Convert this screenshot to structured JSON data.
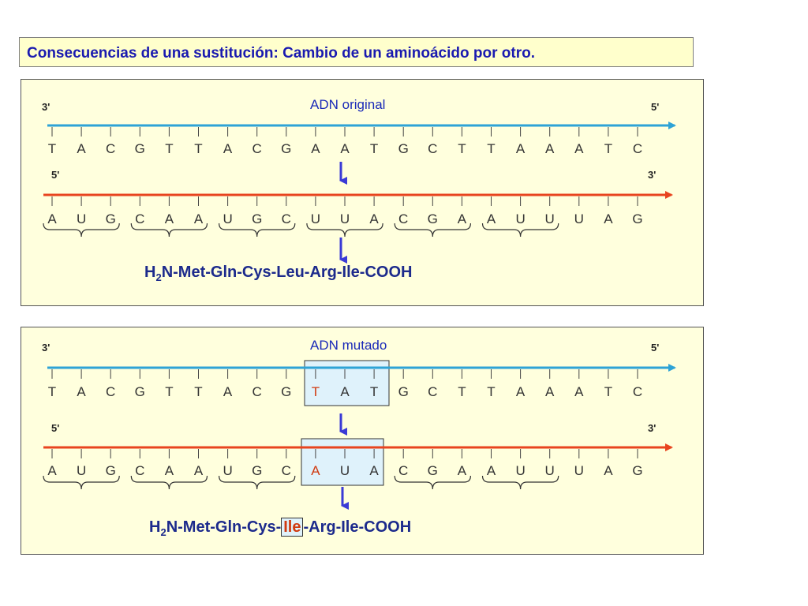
{
  "title": "Consecuencias de una sustitución: Cambio de un aminoácido por otro.",
  "colors": {
    "dna_strand": "#2ea3d6",
    "rna_strand": "#e8441f",
    "arrow": "#3a3ad6",
    "mutation": "#d03a10",
    "highlight_fill": "#dff2fb",
    "panel_bg": "#ffffdd"
  },
  "panels": [
    {
      "id": "original",
      "heading": "ADN original",
      "dna_left_end": "3'",
      "dna_right_end": "5'",
      "rna_left_end": "5'",
      "rna_right_end": "3'",
      "dna_bases": [
        "T",
        "A",
        "C",
        "G",
        "T",
        "T",
        "A",
        "C",
        "G",
        "A",
        "A",
        "T",
        "G",
        "C",
        "T",
        "T",
        "A",
        "A",
        "A",
        "T",
        "C"
      ],
      "rna_bases": [
        "A",
        "U",
        "G",
        "C",
        "A",
        "A",
        "U",
        "G",
        "C",
        "U",
        "U",
        "A",
        "C",
        "G",
        "A",
        "A",
        "U",
        "U",
        "U",
        "A",
        "G"
      ],
      "mutated_dna_index": null,
      "mutated_rna_index": null,
      "protein": {
        "prefix": "H",
        "subscript": "2",
        "before": "N-Met-Gln-Cys-",
        "changed": "Leu",
        "after": "-Arg-Ile-COOH"
      }
    },
    {
      "id": "mutated",
      "heading": "ADN mutado",
      "dna_left_end": "3'",
      "dna_right_end": "5'",
      "rna_left_end": "5'",
      "rna_right_end": "3'",
      "dna_bases": [
        "T",
        "A",
        "C",
        "G",
        "T",
        "T",
        "A",
        "C",
        "G",
        "T",
        "A",
        "T",
        "G",
        "C",
        "T",
        "T",
        "A",
        "A",
        "A",
        "T",
        "C"
      ],
      "rna_bases": [
        "A",
        "U",
        "G",
        "C",
        "A",
        "A",
        "U",
        "G",
        "C",
        "A",
        "U",
        "A",
        "C",
        "G",
        "A",
        "A",
        "U",
        "U",
        "U",
        "A",
        "G"
      ],
      "mutated_dna_index": 9,
      "mutated_rna_index": 9,
      "protein": {
        "prefix": "H",
        "subscript": "2",
        "before": "N-Met-Gln-Cys-",
        "changed": "Ile",
        "after": "-Arg-Ile-COOH"
      }
    }
  ]
}
